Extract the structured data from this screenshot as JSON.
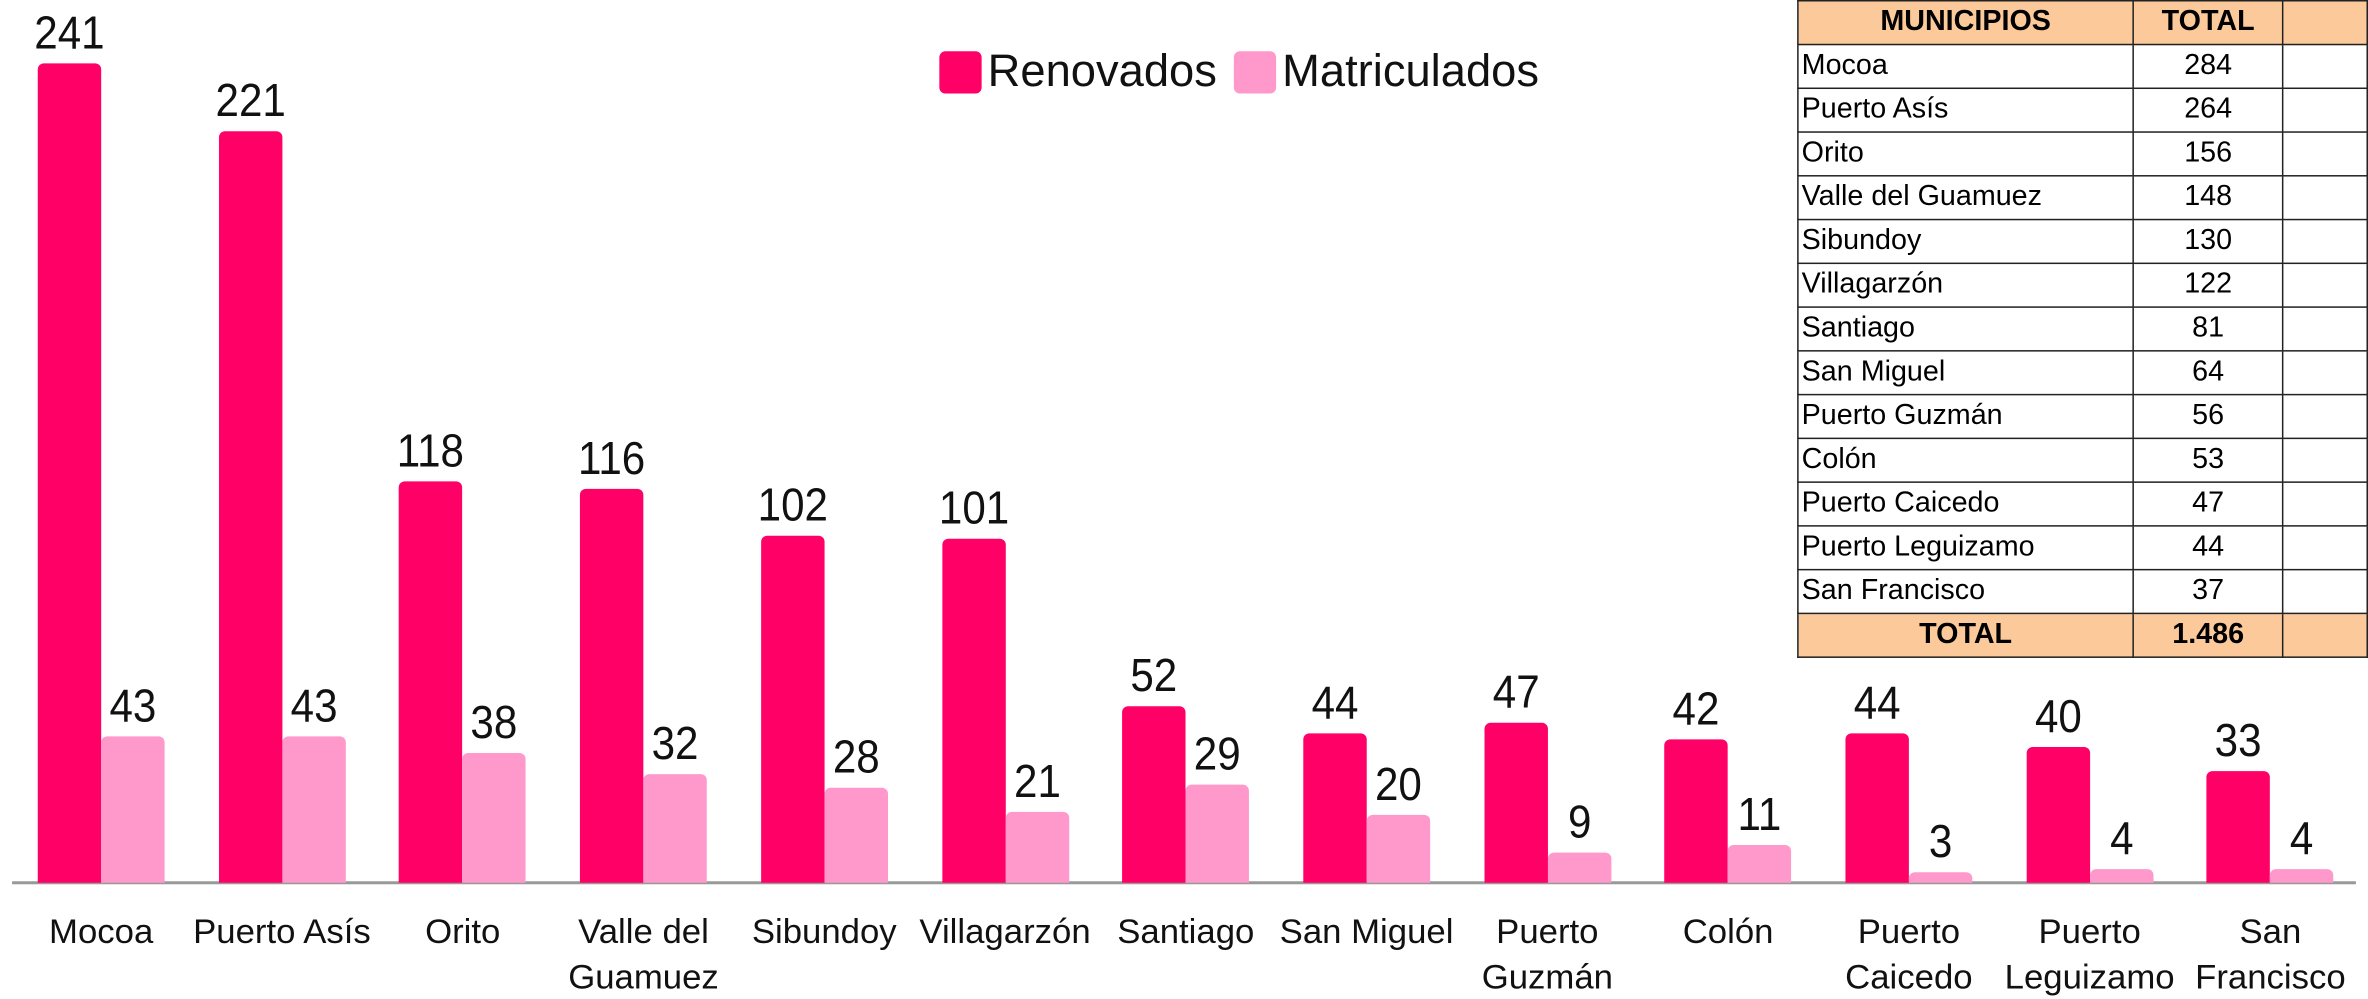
{
  "chart_data": {
    "type": "bar",
    "categories": [
      "Mocoa",
      "Puerto Asís",
      "Orito",
      "Valle del Guamuez",
      "Sibundoy",
      "Villagarzón",
      "Santiago",
      "San Miguel",
      "Puerto Guzmán",
      "Colón",
      "Puerto Caicedo",
      "Puerto Leguizamo",
      "San Francisco"
    ],
    "series": [
      {
        "name": "Renovados",
        "color": "#ff0066",
        "values": [
          241,
          221,
          118,
          116,
          102,
          101,
          52,
          44,
          47,
          42,
          44,
          40,
          33
        ]
      },
      {
        "name": "Matriculados",
        "color": "#ff99cc",
        "values": [
          43,
          43,
          38,
          32,
          28,
          21,
          29,
          20,
          9,
          11,
          3,
          4,
          4
        ]
      }
    ]
  },
  "table": {
    "headers": [
      "MUNICIPIOS",
      "TOTAL"
    ],
    "rows": [
      [
        "Mocoa",
        "284"
      ],
      [
        "Puerto Asís",
        "264"
      ],
      [
        "Orito",
        "156"
      ],
      [
        "Valle del Guamuez",
        "148"
      ],
      [
        "Sibundoy",
        "130"
      ],
      [
        "Villagarzón",
        "122"
      ],
      [
        "Santiago",
        "81"
      ],
      [
        "San Miguel",
        "64"
      ],
      [
        "Puerto Guzmán",
        "56"
      ],
      [
        "Colón",
        "53"
      ],
      [
        "Puerto Caicedo",
        "47"
      ],
      [
        "Puerto Leguizamo",
        "44"
      ],
      [
        "San Francisco",
        "37"
      ]
    ],
    "footer": [
      "TOTAL",
      "1.486"
    ]
  }
}
